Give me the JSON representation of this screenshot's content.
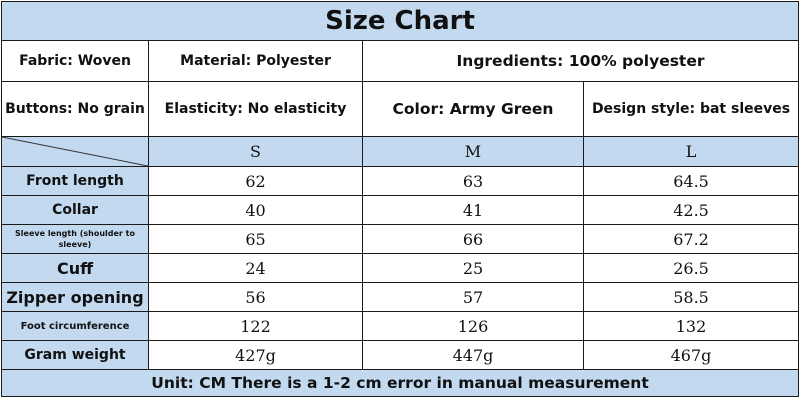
{
  "title": "Size Chart",
  "info_row1": {
    "fabric": "Fabric: Woven",
    "material": "Material: Polyester",
    "ingredients": "Ingredients: 100% polyester"
  },
  "info_row2": {
    "buttons": "Buttons: No grain",
    "elasticity": "Elasticity: No elasticity",
    "color": "Color: Army Green",
    "design": "Design style: bat sleeves"
  },
  "sizes": [
    "S",
    "M",
    "L"
  ],
  "rows": [
    {
      "label": "Front length",
      "values": [
        "62",
        "63",
        "64.5"
      ]
    },
    {
      "label": "Collar",
      "values": [
        "40",
        "41",
        "42.5"
      ]
    },
    {
      "label": "Sleeve length (shoulder to sleeve)",
      "values": [
        "65",
        "66",
        "67.2"
      ]
    },
    {
      "label": "Cuff",
      "values": [
        "24",
        "25",
        "26.5"
      ]
    },
    {
      "label": "Zipper opening",
      "values": [
        "56",
        "57",
        "58.5"
      ]
    },
    {
      "label": "Foot circumference",
      "values": [
        "122",
        "126",
        "132"
      ]
    },
    {
      "label": "Gram weight",
      "values": [
        "427g",
        "447g",
        "467g"
      ]
    }
  ],
  "footer": "Unit: CM There is a 1-2 cm error in manual measurement",
  "colors": {
    "header_fill": "#c2d9f0",
    "border": "#1a1a1a",
    "background": "#ffffff"
  }
}
